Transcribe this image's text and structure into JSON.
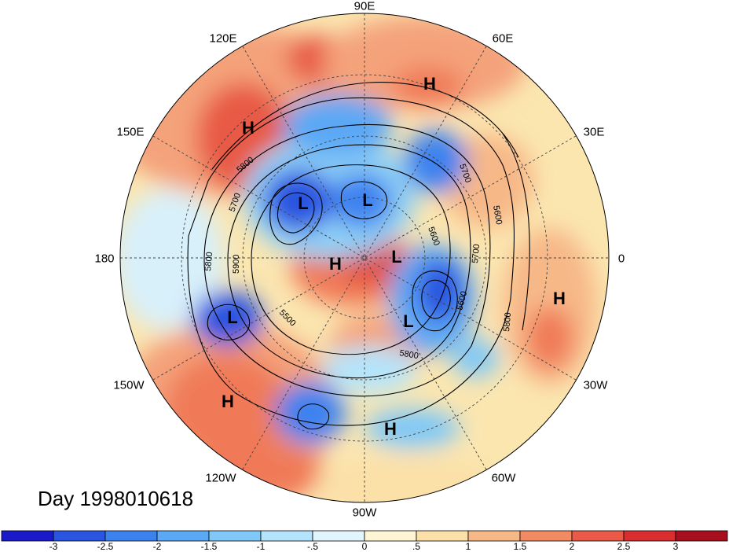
{
  "title": "Day 1998010618",
  "longitude_labels": [
    "90E",
    "60E",
    "30E",
    "0",
    "30W",
    "60W",
    "90W",
    "120W",
    "150W",
    "180",
    "150E",
    "120E"
  ],
  "contour_labels": [
    "5500",
    "5600",
    "5700",
    "5800",
    "5900",
    "5700",
    "5800",
    "5600",
    "5800",
    "5700",
    "5800",
    "5600"
  ],
  "pressure_centers": [
    {
      "type": "H",
      "label": "H"
    },
    {
      "type": "H",
      "label": "H"
    },
    {
      "type": "L",
      "label": "L"
    },
    {
      "type": "L",
      "label": "L"
    },
    {
      "type": "H",
      "label": "H"
    },
    {
      "type": "L",
      "label": "L"
    },
    {
      "type": "L",
      "label": "L"
    },
    {
      "type": "H",
      "label": "H"
    },
    {
      "type": "L",
      "label": "L"
    },
    {
      "type": "H",
      "label": "H"
    },
    {
      "type": "H",
      "label": "H"
    }
  ],
  "colorbar": {
    "ticks": [
      "-3",
      "-2.5",
      "-2",
      "-1.5",
      "-1",
      "-.5",
      "0",
      ".5",
      "1",
      "1.5",
      "2",
      "2.5",
      "3"
    ],
    "colors": [
      "#1a1ac8",
      "#2a55e0",
      "#3c82ef",
      "#5ba8f5",
      "#7fc8f8",
      "#b4e4fb",
      "#e2f4fc",
      "#fdf5d4",
      "#fbe0a8",
      "#f7b888",
      "#f28a64",
      "#ea5a48",
      "#d82e30",
      "#a80f1e"
    ]
  }
}
